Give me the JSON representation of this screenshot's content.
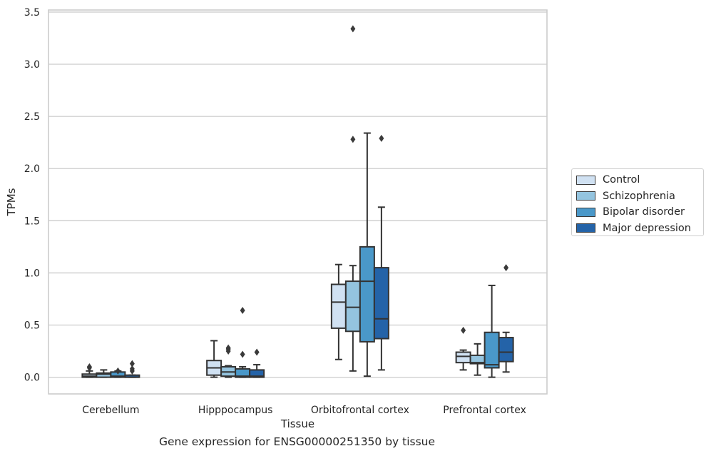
{
  "caption": "Gene expression for ENSG00000251350 by tissue",
  "chart_data": {
    "type": "box",
    "xlabel": "Tissue",
    "ylabel": "TPMs",
    "ylim": [
      -0.16,
      3.52
    ],
    "yticks": [
      0.0,
      0.5,
      1.0,
      1.5,
      2.0,
      2.5,
      3.0,
      3.5
    ],
    "ytick_labels": [
      "0.0",
      "0.5",
      "1.0",
      "1.5",
      "2.0",
      "2.5",
      "3.0",
      "3.5"
    ],
    "grid": "horizontal",
    "legend_position": "right",
    "categories": [
      "Cerebellum",
      "Hipppocampus",
      "Orbitofrontal cortex",
      "Prefrontal cortex"
    ],
    "series": [
      {
        "name": "Control",
        "color": "#d0e1f2",
        "boxes": [
          {
            "whislo": 0.0,
            "q1": 0.0,
            "med": 0.01,
            "q3": 0.03,
            "whishi": 0.06,
            "fliers": [
              0.09,
              0.1
            ]
          },
          {
            "whislo": 0.0,
            "q1": 0.02,
            "med": 0.09,
            "q3": 0.16,
            "whishi": 0.35,
            "fliers": []
          },
          {
            "whislo": 0.17,
            "q1": 0.47,
            "med": 0.72,
            "q3": 0.89,
            "whishi": 1.08,
            "fliers": []
          },
          {
            "whislo": 0.07,
            "q1": 0.14,
            "med": 0.2,
            "q3": 0.24,
            "whishi": 0.26,
            "fliers": [
              0.45
            ]
          }
        ]
      },
      {
        "name": "Schizophrenia",
        "color": "#94c4df",
        "boxes": [
          {
            "whislo": 0.0,
            "q1": 0.0,
            "med": 0.03,
            "q3": 0.04,
            "whishi": 0.07,
            "fliers": []
          },
          {
            "whislo": 0.0,
            "q1": 0.01,
            "med": 0.05,
            "q3": 0.1,
            "whishi": 0.11,
            "fliers": [
              0.25,
              0.27,
              0.28
            ]
          },
          {
            "whislo": 0.06,
            "q1": 0.44,
            "med": 0.67,
            "q3": 0.92,
            "whishi": 1.07,
            "fliers": [
              2.28,
              3.34
            ]
          },
          {
            "whislo": 0.02,
            "q1": 0.13,
            "med": 0.14,
            "q3": 0.21,
            "whishi": 0.32,
            "fliers": []
          }
        ]
      },
      {
        "name": "Bipolar disorder",
        "color": "#4a98c9",
        "boxes": [
          {
            "whislo": 0.0,
            "q1": 0.0,
            "med": 0.01,
            "q3": 0.05,
            "whishi": 0.06,
            "fliers": [
              0.06
            ]
          },
          {
            "whislo": 0.0,
            "q1": 0.0,
            "med": 0.01,
            "q3": 0.08,
            "whishi": 0.1,
            "fliers": [
              0.22,
              0.64
            ]
          },
          {
            "whislo": 0.01,
            "q1": 0.34,
            "med": 0.92,
            "q3": 1.25,
            "whishi": 2.34,
            "fliers": []
          },
          {
            "whislo": 0.0,
            "q1": 0.09,
            "med": 0.12,
            "q3": 0.43,
            "whishi": 0.88,
            "fliers": []
          }
        ]
      },
      {
        "name": "Major depression",
        "color": "#2463a8",
        "boxes": [
          {
            "whislo": 0.0,
            "q1": 0.0,
            "med": 0.0,
            "q3": 0.02,
            "whishi": 0.02,
            "fliers": [
              0.06,
              0.08,
              0.13
            ]
          },
          {
            "whislo": 0.0,
            "q1": 0.0,
            "med": 0.01,
            "q3": 0.07,
            "whishi": 0.12,
            "fliers": [
              0.24
            ]
          },
          {
            "whislo": 0.07,
            "q1": 0.37,
            "med": 0.56,
            "q3": 1.05,
            "whishi": 1.63,
            "fliers": [
              2.29
            ]
          },
          {
            "whislo": 0.05,
            "q1": 0.15,
            "med": 0.24,
            "q3": 0.38,
            "whishi": 0.43,
            "fliers": [
              1.05
            ]
          }
        ]
      }
    ]
  }
}
